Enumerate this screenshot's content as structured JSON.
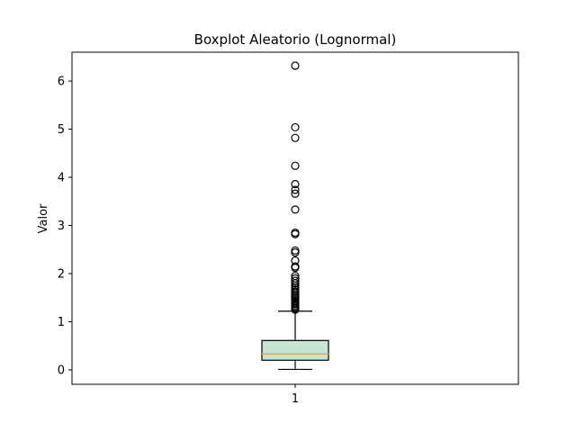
{
  "chart_data": {
    "type": "boxplot",
    "title": "Boxplot Aleatorio (Lognormal)",
    "xlabel": "",
    "ylabel": "Valor",
    "categories": [
      "1"
    ],
    "ylim": [
      -0.3,
      6.6
    ],
    "y_ticks": [
      0,
      1,
      2,
      3,
      4,
      5,
      6
    ],
    "grid": false,
    "legend": "none",
    "colors": {
      "box_fill": "#c6e6d3",
      "box_edge": "#000000",
      "median": "#f0a050",
      "whisker": "#000000",
      "flier": "#000000"
    },
    "boxes": [
      {
        "category": "1",
        "whisker_low": 0.01,
        "q1": 0.2,
        "median": 0.33,
        "q3": 0.61,
        "whisker_high": 1.22,
        "outliers": [
          1.25,
          1.28,
          1.31,
          1.34,
          1.37,
          1.4,
          1.43,
          1.46,
          1.5,
          1.53,
          1.56,
          1.6,
          1.63,
          1.67,
          1.71,
          1.75,
          1.8,
          1.85,
          1.9,
          1.95,
          2.12,
          2.15,
          2.27,
          2.44,
          2.48,
          2.82,
          2.85,
          3.33,
          3.66,
          3.74,
          3.86,
          4.24,
          4.82,
          5.04,
          6.32
        ]
      }
    ]
  }
}
